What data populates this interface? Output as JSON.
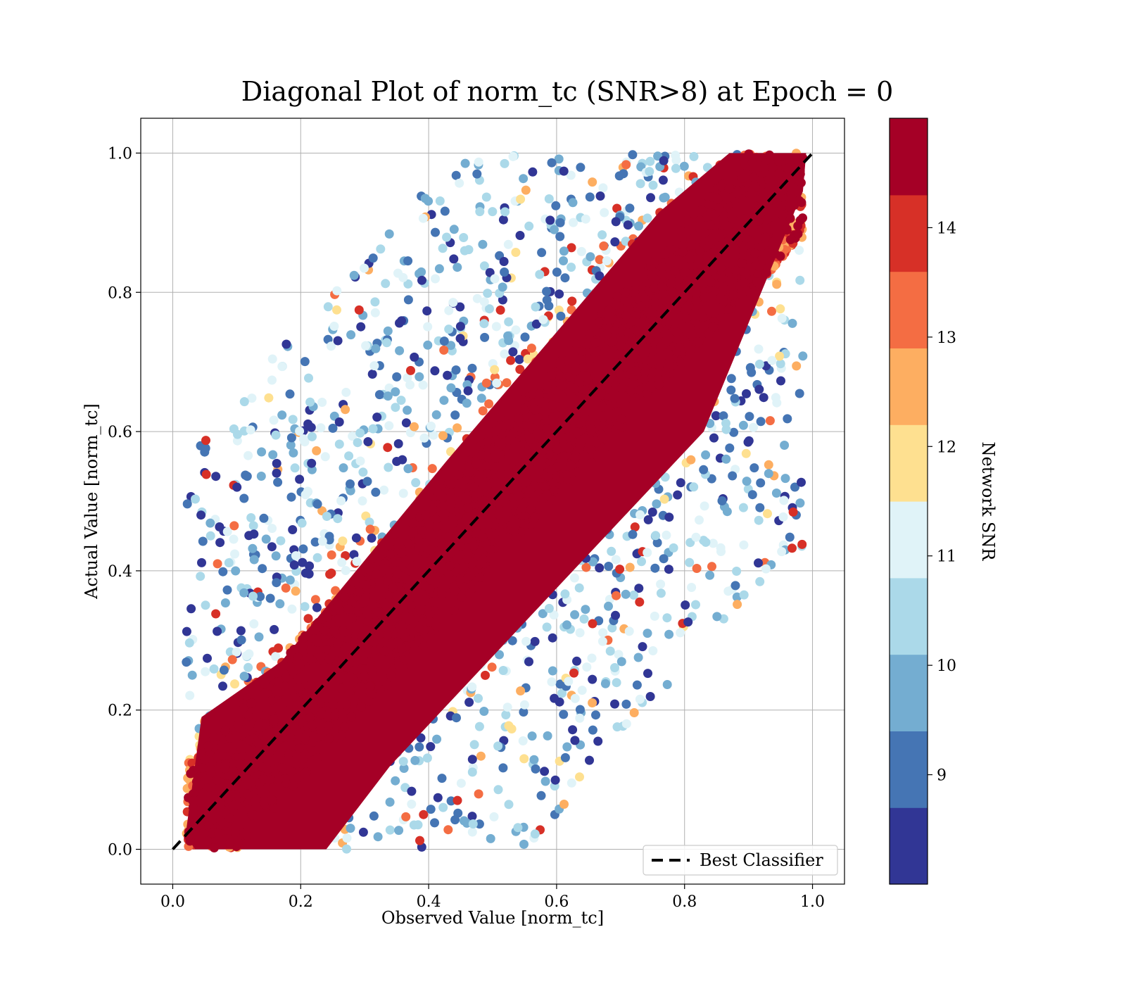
{
  "chart_data": {
    "type": "scatter",
    "title": "Diagonal Plot of norm_tc (SNR>8) at Epoch = 0",
    "xlabel": "Observed Value [norm_tc]",
    "ylabel": "Actual Value [norm_tc]",
    "xlim": [
      -0.05,
      1.05
    ],
    "ylim": [
      -0.05,
      1.05
    ],
    "x_ticks": [
      "0.0",
      "0.2",
      "0.4",
      "0.6",
      "0.8",
      "1.0"
    ],
    "y_ticks": [
      "0.0",
      "0.2",
      "0.4",
      "0.6",
      "0.8",
      "1.0"
    ],
    "grid": true,
    "legend": {
      "placement": "lower-right",
      "entries": [
        {
          "label": "Best Classifier",
          "style": "dashed",
          "color": "#000000"
        }
      ]
    },
    "reference_line": {
      "name": "Best Classifier",
      "x": [
        0.0,
        1.0
      ],
      "y": [
        0.0,
        1.0
      ]
    },
    "colorbar": {
      "label": "Network SNR",
      "range": [
        8.0,
        15.0
      ],
      "ticks": [
        "9",
        "10",
        "11",
        "12",
        "13",
        "14"
      ],
      "colors": [
        "#313695",
        "#4575b4",
        "#74add1",
        "#abd9e9",
        "#e0f3f8",
        "#fee090",
        "#fdae61",
        "#f46d43",
        "#d73027",
        "#a50026"
      ]
    },
    "series": [
      {
        "description": "dense high-SNR band along diagonal",
        "snr_high": 15,
        "color": "#a50026"
      },
      {
        "description": "scattered lower-SNR points away from diagonal"
      }
    ]
  }
}
